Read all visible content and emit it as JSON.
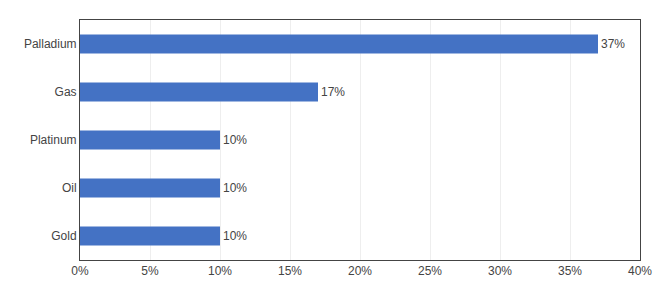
{
  "chart_data": {
    "type": "bar",
    "orientation": "horizontal",
    "categories": [
      "Gold",
      "Oil",
      "Platinum",
      "Gas",
      "Palladium"
    ],
    "values": [
      0.1,
      0.1,
      0.1,
      0.17,
      0.37
    ],
    "value_labels": [
      "10%",
      "10%",
      "10%",
      "17%",
      "37%"
    ],
    "data_labels": true,
    "color": "#4472c4",
    "xlim": [
      0,
      0.4
    ],
    "xticks": [
      {
        "value": 0.0,
        "label": "0%"
      },
      {
        "value": 0.05,
        "label": "5%"
      },
      {
        "value": 0.1,
        "label": "10%"
      },
      {
        "value": 0.15,
        "label": "15%"
      },
      {
        "value": 0.2,
        "label": "20%"
      },
      {
        "value": 0.25,
        "label": "25%"
      },
      {
        "value": 0.3,
        "label": "30%"
      },
      {
        "value": 0.35,
        "label": "35%"
      },
      {
        "value": 0.4,
        "label": "40%"
      }
    ],
    "grid": true
  }
}
